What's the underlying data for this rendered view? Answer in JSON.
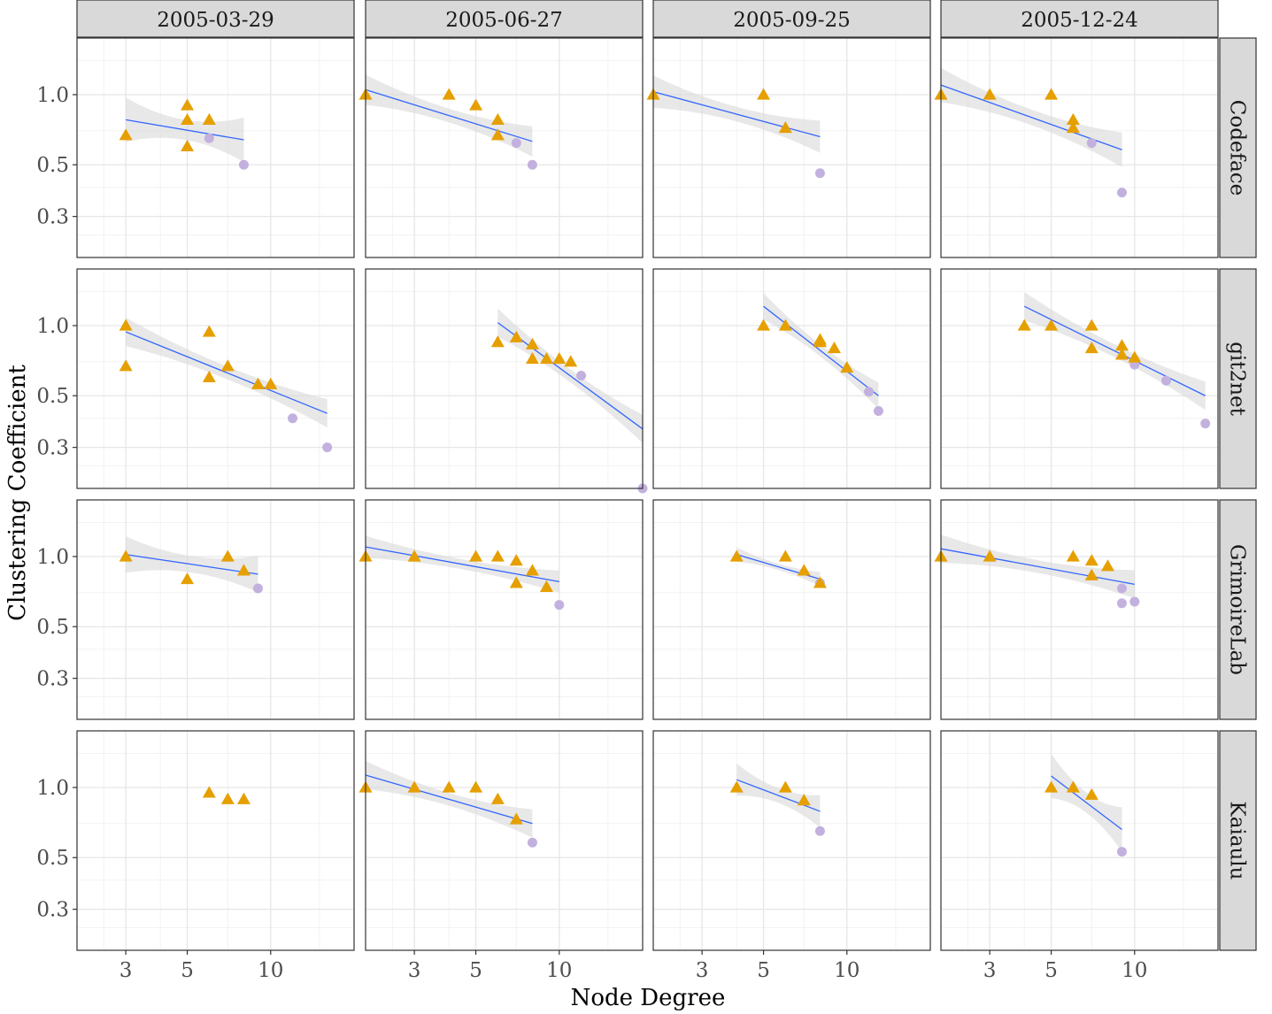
{
  "chart_data": {
    "type": "scatter",
    "xlabel": "Node Degree",
    "ylabel": "Clustering Coefficient",
    "x_scale": "log",
    "y_scale": "log",
    "xlim": [
      2,
      20
    ],
    "ylim": [
      0.2,
      1.75
    ],
    "x_ticks": [
      3,
      5,
      10
    ],
    "x_tick_labels": [
      "3",
      "5",
      "10"
    ],
    "y_ticks": [
      0.3,
      0.5,
      1.0
    ],
    "y_tick_labels": [
      "0.3",
      "0.5",
      "1.0"
    ],
    "grid": true,
    "columns": [
      "2005-03-29",
      "2005-06-27",
      "2005-09-25",
      "2005-12-24"
    ],
    "rows": [
      "Codeface",
      "git2net",
      "GrimoireLab",
      "Kaiaulu"
    ],
    "colors": {
      "triangle": "#E69F00",
      "circle": "#C2B1DE",
      "line": "#3366FF",
      "band": "#D9D9D9",
      "strip": "#D9D9D9"
    },
    "panels": [
      {
        "row": "Codeface",
        "col": "2005-03-29",
        "triangles": [
          [
            3,
            0.67
          ],
          [
            5,
            0.9
          ],
          [
            5,
            0.78
          ],
          [
            6,
            0.78
          ],
          [
            5,
            0.6
          ]
        ],
        "circles": [
          [
            6,
            0.65
          ],
          [
            8,
            0.5
          ]
        ],
        "fit": [
          [
            3,
            0.78
          ],
          [
            8,
            0.64
          ]
        ],
        "band_width": 0.22
      },
      {
        "row": "Codeface",
        "col": "2005-06-27",
        "triangles": [
          [
            2,
            1.0
          ],
          [
            4,
            1.0
          ],
          [
            5,
            0.9
          ],
          [
            6,
            0.78
          ],
          [
            6,
            0.67
          ]
        ],
        "circles": [
          [
            7,
            0.62
          ],
          [
            8,
            0.5
          ]
        ],
        "fit": [
          [
            2,
            1.05
          ],
          [
            8,
            0.63
          ]
        ],
        "band_width": 0.15
      },
      {
        "row": "Codeface",
        "col": "2005-09-25",
        "triangles": [
          [
            2,
            1.0
          ],
          [
            5,
            1.0
          ],
          [
            6,
            0.72
          ]
        ],
        "circles": [
          [
            8,
            0.46
          ]
        ],
        "fit": [
          [
            2,
            1.03
          ],
          [
            8,
            0.66
          ]
        ],
        "band_width": 0.16
      },
      {
        "row": "Codeface",
        "col": "2005-12-24",
        "triangles": [
          [
            2,
            1.0
          ],
          [
            3,
            1.0
          ],
          [
            5,
            1.0
          ],
          [
            6,
            0.78
          ],
          [
            6,
            0.72
          ]
        ],
        "circles": [
          [
            7,
            0.62
          ],
          [
            9,
            0.38
          ]
        ],
        "fit": [
          [
            2,
            1.1
          ],
          [
            9,
            0.58
          ]
        ],
        "band_width": 0.17
      },
      {
        "row": "git2net",
        "col": "2005-03-29",
        "triangles": [
          [
            3,
            1.0
          ],
          [
            3,
            0.67
          ],
          [
            6,
            0.94
          ],
          [
            6,
            0.6
          ],
          [
            7,
            0.67
          ],
          [
            9,
            0.56
          ],
          [
            10,
            0.56
          ]
        ],
        "circles": [
          [
            12,
            0.4
          ],
          [
            16,
            0.3
          ]
        ],
        "fit": [
          [
            3,
            0.94
          ],
          [
            16,
            0.42
          ]
        ],
        "band_width": 0.14
      },
      {
        "row": "git2net",
        "col": "2005-06-27",
        "triangles": [
          [
            6,
            0.85
          ],
          [
            7,
            0.89
          ],
          [
            8,
            0.83
          ],
          [
            8,
            0.72
          ],
          [
            9,
            0.72
          ],
          [
            10,
            0.72
          ],
          [
            11,
            0.7
          ]
        ],
        "circles": [
          [
            12,
            0.61
          ],
          [
            20,
            0.2
          ]
        ],
        "fit": [
          [
            6,
            1.03
          ],
          [
            20,
            0.36
          ]
        ],
        "band_width": 0.14
      },
      {
        "row": "git2net",
        "col": "2005-09-25",
        "triangles": [
          [
            5,
            1.0
          ],
          [
            6,
            1.0
          ],
          [
            8,
            0.87
          ],
          [
            8,
            0.85
          ],
          [
            9,
            0.8
          ],
          [
            10,
            0.66
          ]
        ],
        "circles": [
          [
            12,
            0.52
          ],
          [
            13,
            0.43
          ]
        ],
        "fit": [
          [
            5,
            1.21
          ],
          [
            13,
            0.5
          ]
        ],
        "band_width": 0.13
      },
      {
        "row": "git2net",
        "col": "2005-12-24",
        "triangles": [
          [
            4,
            1.0
          ],
          [
            5,
            1.0
          ],
          [
            7,
            1.0
          ],
          [
            7,
            0.8
          ],
          [
            9,
            0.82
          ],
          [
            9,
            0.75
          ],
          [
            10,
            0.73
          ]
        ],
        "circles": [
          [
            10,
            0.68
          ],
          [
            13,
            0.58
          ],
          [
            18,
            0.38
          ]
        ],
        "fit": [
          [
            4,
            1.21
          ],
          [
            18,
            0.5
          ]
        ],
        "band_width": 0.14
      },
      {
        "row": "GrimoireLab",
        "col": "2005-03-29",
        "triangles": [
          [
            3,
            1.0
          ],
          [
            5,
            0.8
          ],
          [
            7,
            1.0
          ],
          [
            8,
            0.87
          ]
        ],
        "circles": [
          [
            9,
            0.73
          ]
        ],
        "fit": [
          [
            3,
            1.02
          ],
          [
            9,
            0.84
          ]
        ],
        "band_width": 0.18
      },
      {
        "row": "GrimoireLab",
        "col": "2005-06-27",
        "triangles": [
          [
            2,
            1.0
          ],
          [
            3,
            1.0
          ],
          [
            5,
            1.0
          ],
          [
            6,
            1.0
          ],
          [
            7,
            0.96
          ],
          [
            7,
            0.77
          ],
          [
            8,
            0.87
          ],
          [
            9,
            0.74
          ]
        ],
        "circles": [
          [
            10,
            0.62
          ]
        ],
        "fit": [
          [
            2,
            1.1
          ],
          [
            10,
            0.78
          ]
        ],
        "band_width": 0.11
      },
      {
        "row": "GrimoireLab",
        "col": "2005-09-25",
        "triangles": [
          [
            4,
            1.0
          ],
          [
            6,
            1.0
          ],
          [
            7,
            0.87
          ],
          [
            8,
            0.77
          ]
        ],
        "circles": [
          [
            8,
            0.77
          ]
        ],
        "fit": [
          [
            4,
            1.02
          ],
          [
            8,
            0.8
          ]
        ],
        "band_width": 0.07
      },
      {
        "row": "GrimoireLab",
        "col": "2005-12-24",
        "triangles": [
          [
            2,
            1.0
          ],
          [
            3,
            1.0
          ],
          [
            6,
            1.0
          ],
          [
            7,
            0.96
          ],
          [
            8,
            0.91
          ],
          [
            7,
            0.83
          ]
        ],
        "circles": [
          [
            9,
            0.73
          ],
          [
            9,
            0.63
          ],
          [
            10,
            0.64
          ]
        ],
        "fit": [
          [
            2,
            1.08
          ],
          [
            10,
            0.76
          ]
        ],
        "band_width": 0.14
      },
      {
        "row": "Kaiaulu",
        "col": "2005-03-29",
        "triangles": [
          [
            6,
            0.95
          ],
          [
            7,
            0.89
          ],
          [
            8,
            0.89
          ]
        ],
        "circles": [],
        "fit": [],
        "band_width": 0
      },
      {
        "row": "Kaiaulu",
        "col": "2005-06-27",
        "triangles": [
          [
            2,
            1.0
          ],
          [
            3,
            1.0
          ],
          [
            4,
            1.0
          ],
          [
            5,
            1.0
          ],
          [
            6,
            0.89
          ],
          [
            7,
            0.73
          ]
        ],
        "circles": [
          [
            8,
            0.58
          ]
        ],
        "fit": [
          [
            2,
            1.13
          ],
          [
            8,
            0.7
          ]
        ],
        "band_width": 0.14
      },
      {
        "row": "Kaiaulu",
        "col": "2005-09-25",
        "triangles": [
          [
            4,
            1.0
          ],
          [
            6,
            1.0
          ],
          [
            7,
            0.88
          ]
        ],
        "circles": [
          [
            8,
            0.65
          ]
        ],
        "fit": [
          [
            4,
            1.08
          ],
          [
            8,
            0.79
          ]
        ],
        "band_width": 0.16
      },
      {
        "row": "Kaiaulu",
        "col": "2005-12-24",
        "triangles": [
          [
            5,
            1.0
          ],
          [
            6,
            1.0
          ],
          [
            7,
            0.93
          ]
        ],
        "circles": [
          [
            9,
            0.53
          ]
        ],
        "fit": [
          [
            5,
            1.12
          ],
          [
            9,
            0.66
          ]
        ],
        "band_width": 0.22
      }
    ]
  }
}
